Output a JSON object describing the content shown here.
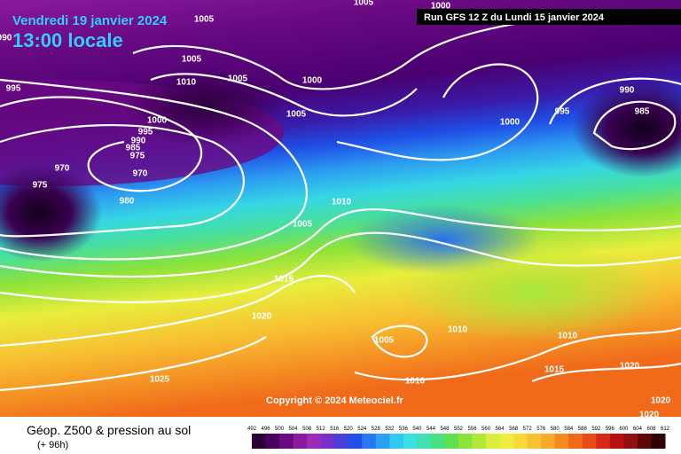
{
  "header": {
    "title": "Vendredi 19 janvier 2024",
    "time": "13:00 locale",
    "run": "Run GFS 12 Z du Lundi 15 janvier 2024"
  },
  "map": {
    "isobar_labels": [
      "1005",
      "1005",
      "1000",
      "990",
      "1005",
      "1010",
      "1005",
      "1000",
      "995",
      "990",
      "985",
      "995",
      "1005",
      "1000",
      "1000",
      "995",
      "990",
      "985",
      "975",
      "970",
      "970",
      "975",
      "980",
      "1010",
      "1005",
      "1015",
      "1020",
      "1010",
      "1005",
      "1010",
      "1015",
      "1020",
      "1010",
      "1025",
      "1020",
      "1020"
    ],
    "copyright": "Copyright © 2024 Meteociel.fr"
  },
  "legend": {
    "title": "Géop. Z500 & pression au sol",
    "subtitle": "(+ 96h)",
    "scale_labels": [
      492,
      496,
      500,
      504,
      508,
      512,
      516,
      520,
      524,
      528,
      532,
      536,
      540,
      544,
      548,
      552,
      556,
      560,
      564,
      568,
      572,
      576,
      580,
      584,
      588,
      592,
      596,
      600,
      604,
      608,
      612
    ]
  }
}
